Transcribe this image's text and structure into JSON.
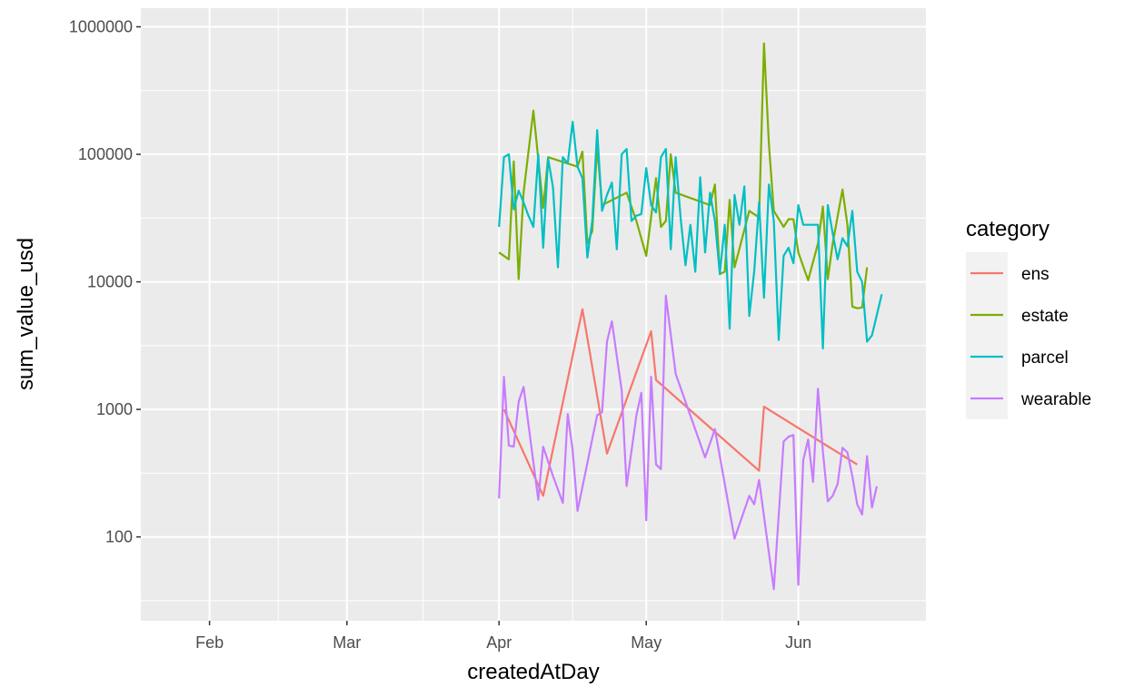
{
  "chart_data": {
    "type": "line",
    "title": "",
    "xlabel": "createdAtDay",
    "ylabel": "sum_value_usd",
    "y_scale": "log10",
    "xlim": [
      "2022-01-18",
      "2022-06-27"
    ],
    "ylim": [
      22,
      1400000
    ],
    "x_ticks": [
      {
        "date": "2022-02-01",
        "label": "Feb"
      },
      {
        "date": "2022-03-01",
        "label": "Mar"
      },
      {
        "date": "2022-04-01",
        "label": "Apr"
      },
      {
        "date": "2022-05-01",
        "label": "May"
      },
      {
        "date": "2022-06-01",
        "label": "Jun"
      }
    ],
    "y_ticks": [
      {
        "value": 100,
        "label": "100"
      },
      {
        "value": 1000,
        "label": "1000"
      },
      {
        "value": 10000,
        "label": "10000"
      },
      {
        "value": 100000,
        "label": "100000"
      },
      {
        "value": 1000000,
        "label": "1000000"
      }
    ],
    "grid": true,
    "legend": {
      "title": "category",
      "position": "right"
    },
    "series": [
      {
        "name": "ens",
        "color": "#F8766D",
        "points": [
          [
            "2022-04-02",
            1000
          ],
          [
            "2022-04-10",
            210
          ],
          [
            "2022-04-18",
            6100
          ],
          [
            "2022-04-23",
            450
          ],
          [
            "2022-05-02",
            4100
          ],
          [
            "2022-05-03",
            1700
          ],
          [
            "2022-05-24",
            330
          ],
          [
            "2022-05-25",
            1050
          ],
          [
            "2022-06-13",
            370
          ]
        ]
      },
      {
        "name": "estate",
        "color": "#7CAE00",
        "points": [
          [
            "2022-04-01",
            17000
          ],
          [
            "2022-04-03",
            15000
          ],
          [
            "2022-04-04",
            88000
          ],
          [
            "2022-04-05",
            10500
          ],
          [
            "2022-04-06",
            50000
          ],
          [
            "2022-04-08",
            220000
          ],
          [
            "2022-04-10",
            38000
          ],
          [
            "2022-04-11",
            95000
          ],
          [
            "2022-04-17",
            80000
          ],
          [
            "2022-04-18",
            105000
          ],
          [
            "2022-04-19",
            20000
          ],
          [
            "2022-04-20",
            25000
          ],
          [
            "2022-04-21",
            115000
          ],
          [
            "2022-04-22",
            40000
          ],
          [
            "2022-04-27",
            50000
          ],
          [
            "2022-04-29",
            30000
          ],
          [
            "2022-05-01",
            16000
          ],
          [
            "2022-05-03",
            65000
          ],
          [
            "2022-05-04",
            27000
          ],
          [
            "2022-05-05",
            30000
          ],
          [
            "2022-05-06",
            100000
          ],
          [
            "2022-05-07",
            50000
          ],
          [
            "2022-05-14",
            40000
          ],
          [
            "2022-05-15",
            58000
          ],
          [
            "2022-05-16",
            11500
          ],
          [
            "2022-05-17",
            12000
          ],
          [
            "2022-05-18",
            44000
          ],
          [
            "2022-05-19",
            13000
          ],
          [
            "2022-05-22",
            36000
          ],
          [
            "2022-05-24",
            32000
          ],
          [
            "2022-05-25",
            740000
          ],
          [
            "2022-05-26",
            120000
          ],
          [
            "2022-05-27",
            36000
          ],
          [
            "2022-05-29",
            27000
          ],
          [
            "2022-05-30",
            31000
          ],
          [
            "2022-05-31",
            31000
          ],
          [
            "2022-06-01",
            17000
          ],
          [
            "2022-06-03",
            10300
          ],
          [
            "2022-06-05",
            20000
          ],
          [
            "2022-06-06",
            39000
          ],
          [
            "2022-06-07",
            10500
          ],
          [
            "2022-06-08",
            20000
          ],
          [
            "2022-06-10",
            53000
          ],
          [
            "2022-06-11",
            28000
          ],
          [
            "2022-06-12",
            6400
          ],
          [
            "2022-06-13",
            6200
          ],
          [
            "2022-06-14",
            6300
          ],
          [
            "2022-06-15",
            13000
          ]
        ]
      },
      {
        "name": "parcel",
        "color": "#00BFC4",
        "points": [
          [
            "2022-04-01",
            27000
          ],
          [
            "2022-04-02",
            95000
          ],
          [
            "2022-04-03",
            100000
          ],
          [
            "2022-04-04",
            37000
          ],
          [
            "2022-04-05",
            52000
          ],
          [
            "2022-04-06",
            42000
          ],
          [
            "2022-04-07",
            33000
          ],
          [
            "2022-04-08",
            27000
          ],
          [
            "2022-04-09",
            100000
          ],
          [
            "2022-04-10",
            18500
          ],
          [
            "2022-04-11",
            93000
          ],
          [
            "2022-04-12",
            55000
          ],
          [
            "2022-04-13",
            13000
          ],
          [
            "2022-04-14",
            95000
          ],
          [
            "2022-04-15",
            85000
          ],
          [
            "2022-04-16",
            180000
          ],
          [
            "2022-04-17",
            80000
          ],
          [
            "2022-04-18",
            65000
          ],
          [
            "2022-04-19",
            15500
          ],
          [
            "2022-04-20",
            30000
          ],
          [
            "2022-04-21",
            155000
          ],
          [
            "2022-04-22",
            36000
          ],
          [
            "2022-04-23",
            48000
          ],
          [
            "2022-04-24",
            60000
          ],
          [
            "2022-04-25",
            18000
          ],
          [
            "2022-04-26",
            100000
          ],
          [
            "2022-04-27",
            110000
          ],
          [
            "2022-04-28",
            30000
          ],
          [
            "2022-04-29",
            33000
          ],
          [
            "2022-04-30",
            34000
          ],
          [
            "2022-05-01",
            78000
          ],
          [
            "2022-05-02",
            40000
          ],
          [
            "2022-05-03",
            35000
          ],
          [
            "2022-05-04",
            95000
          ],
          [
            "2022-05-05",
            110000
          ],
          [
            "2022-05-06",
            18000
          ],
          [
            "2022-05-07",
            95000
          ],
          [
            "2022-05-08",
            32000
          ],
          [
            "2022-05-09",
            13500
          ],
          [
            "2022-05-10",
            28000
          ],
          [
            "2022-05-11",
            12000
          ],
          [
            "2022-05-12",
            66000
          ],
          [
            "2022-05-13",
            17000
          ],
          [
            "2022-05-14",
            50000
          ],
          [
            "2022-05-15",
            30000
          ],
          [
            "2022-05-16",
            11500
          ],
          [
            "2022-05-17",
            28000
          ],
          [
            "2022-05-18",
            4300
          ],
          [
            "2022-05-19",
            48000
          ],
          [
            "2022-05-20",
            28000
          ],
          [
            "2022-05-21",
            56000
          ],
          [
            "2022-05-22",
            5400
          ],
          [
            "2022-05-23",
            12000
          ],
          [
            "2022-05-24",
            42000
          ],
          [
            "2022-05-25",
            7500
          ],
          [
            "2022-05-26",
            58000
          ],
          [
            "2022-05-27",
            30000
          ],
          [
            "2022-05-28",
            3500
          ],
          [
            "2022-05-29",
            16000
          ],
          [
            "2022-05-30",
            18500
          ],
          [
            "2022-05-31",
            14000
          ],
          [
            "2022-06-01",
            40000
          ],
          [
            "2022-06-02",
            28000
          ],
          [
            "2022-06-05",
            28000
          ],
          [
            "2022-06-06",
            3000
          ],
          [
            "2022-06-07",
            40000
          ],
          [
            "2022-06-08",
            24000
          ],
          [
            "2022-06-09",
            15000
          ],
          [
            "2022-06-10",
            22000
          ],
          [
            "2022-06-11",
            19000
          ],
          [
            "2022-06-12",
            36000
          ],
          [
            "2022-06-13",
            12000
          ],
          [
            "2022-06-14",
            10000
          ],
          [
            "2022-06-15",
            3400
          ],
          [
            "2022-06-16",
            3800
          ],
          [
            "2022-06-18",
            8000
          ]
        ]
      },
      {
        "name": "wearable",
        "color": "#C77CFF",
        "points": [
          [
            "2022-04-01",
            200
          ],
          [
            "2022-04-02",
            1800
          ],
          [
            "2022-04-03",
            520
          ],
          [
            "2022-04-04",
            510
          ],
          [
            "2022-04-05",
            1150
          ],
          [
            "2022-04-06",
            1500
          ],
          [
            "2022-04-09",
            195
          ],
          [
            "2022-04-10",
            510
          ],
          [
            "2022-04-12",
            300
          ],
          [
            "2022-04-14",
            185
          ],
          [
            "2022-04-15",
            920
          ],
          [
            "2022-04-16",
            480
          ],
          [
            "2022-04-17",
            160
          ],
          [
            "2022-04-21",
            900
          ],
          [
            "2022-04-22",
            950
          ],
          [
            "2022-04-23",
            3400
          ],
          [
            "2022-04-24",
            4900
          ],
          [
            "2022-04-26",
            1400
          ],
          [
            "2022-04-27",
            250
          ],
          [
            "2022-04-29",
            900
          ],
          [
            "2022-04-30",
            1350
          ],
          [
            "2022-05-01",
            135
          ],
          [
            "2022-05-02",
            1800
          ],
          [
            "2022-05-03",
            370
          ],
          [
            "2022-05-04",
            340
          ],
          [
            "2022-05-05",
            7800
          ],
          [
            "2022-05-07",
            1900
          ],
          [
            "2022-05-13",
            420
          ],
          [
            "2022-05-15",
            700
          ],
          [
            "2022-05-19",
            97
          ],
          [
            "2022-05-22",
            210
          ],
          [
            "2022-05-23",
            180
          ],
          [
            "2022-05-24",
            280
          ],
          [
            "2022-05-27",
            39
          ],
          [
            "2022-05-29",
            560
          ],
          [
            "2022-05-30",
            610
          ],
          [
            "2022-05-31",
            630
          ],
          [
            "2022-06-01",
            42
          ],
          [
            "2022-06-02",
            400
          ],
          [
            "2022-06-03",
            580
          ],
          [
            "2022-06-04",
            270
          ],
          [
            "2022-06-05",
            1450
          ],
          [
            "2022-06-06",
            470
          ],
          [
            "2022-06-07",
            190
          ],
          [
            "2022-06-08",
            210
          ],
          [
            "2022-06-09",
            260
          ],
          [
            "2022-06-10",
            500
          ],
          [
            "2022-06-11",
            460
          ],
          [
            "2022-06-12",
            300
          ],
          [
            "2022-06-13",
            180
          ],
          [
            "2022-06-14",
            150
          ],
          [
            "2022-06-15",
            430
          ],
          [
            "2022-06-16",
            170
          ],
          [
            "2022-06-17",
            250
          ]
        ]
      }
    ]
  }
}
